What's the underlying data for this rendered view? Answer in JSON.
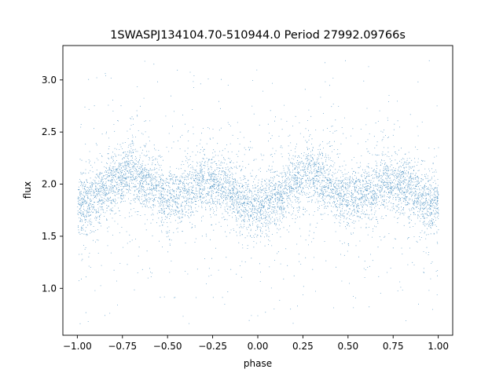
{
  "chart_data": {
    "type": "scatter",
    "title": "1SWASPJ134104.70-510944.0 Period 27992.09766s",
    "xlabel": "phase",
    "ylabel": "flux",
    "xlim": [
      -1.08,
      1.08
    ],
    "ylim": [
      0.55,
      3.33
    ],
    "xticks": [
      -1.0,
      -0.75,
      -0.5,
      -0.25,
      0.0,
      0.25,
      0.5,
      0.75,
      1.0
    ],
    "xtick_labels": [
      "−1.00",
      "−0.75",
      "−0.50",
      "−0.25",
      "0.00",
      "0.25",
      "0.50",
      "0.75",
      "1.00"
    ],
    "yticks": [
      1.0,
      1.5,
      2.0,
      2.5,
      3.0
    ],
    "ytick_labels": [
      "1.0",
      "1.5",
      "2.0",
      "2.5",
      "3.0"
    ],
    "grid": false,
    "marker_color": "#1f77b4",
    "series": [
      {
        "profile_phase": [
          -1.0,
          -0.9,
          -0.8,
          -0.7,
          -0.6,
          -0.5,
          -0.4,
          -0.3,
          -0.2,
          -0.1,
          0.0,
          0.1,
          0.2,
          0.3,
          0.4,
          0.5,
          0.6,
          0.7,
          0.8,
          0.9,
          1.0
        ],
        "profile_flux": [
          1.78,
          1.87,
          2.02,
          2.12,
          2.01,
          1.86,
          1.92,
          2.03,
          2.0,
          1.86,
          1.78,
          1.87,
          2.02,
          2.12,
          2.01,
          1.86,
          1.92,
          2.03,
          2.0,
          1.86,
          1.78
        ],
        "scatter_core_sd": 0.14,
        "outlier_range": [
          0.65,
          3.2
        ]
      }
    ]
  }
}
